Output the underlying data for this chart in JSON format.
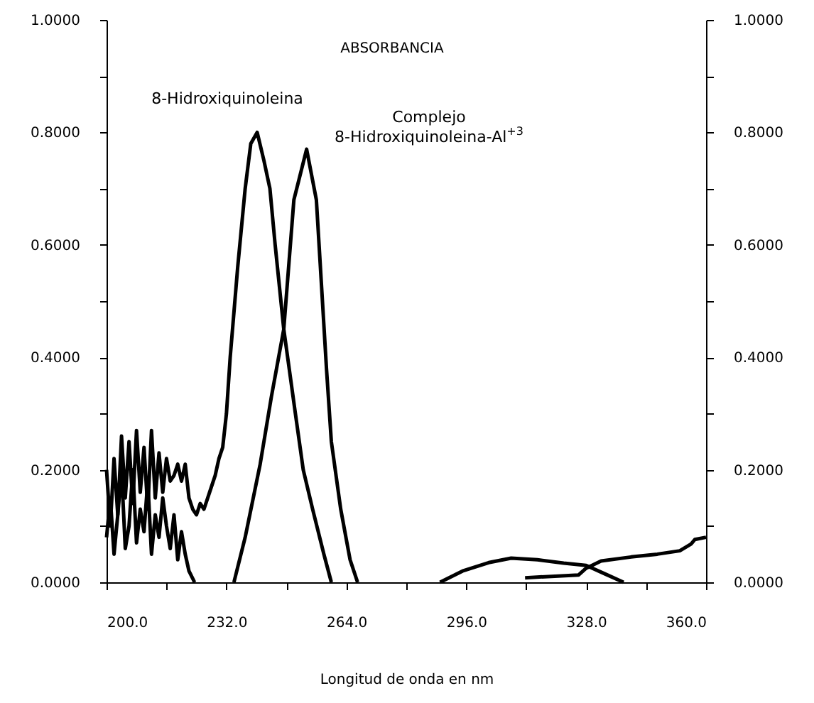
{
  "chart_data": {
    "type": "line",
    "title": "ABSORBANCIA",
    "xlabel": "Longitud de onda en  nm",
    "xlim": [
      200,
      360
    ],
    "xticks": [
      {
        "value": 200,
        "label": "200.0"
      },
      {
        "value": 216,
        "label": null
      },
      {
        "value": 232,
        "label": "232.0"
      },
      {
        "value": 248,
        "label": null
      },
      {
        "value": 264,
        "label": "264.0"
      },
      {
        "value": 280,
        "label": null
      },
      {
        "value": 296,
        "label": "296.0"
      },
      {
        "value": 312,
        "label": null
      },
      {
        "value": 328,
        "label": "328.0"
      },
      {
        "value": 344,
        "label": null
      },
      {
        "value": 360,
        "label": "360.0"
      }
    ],
    "ylim": [
      0,
      1
    ],
    "yticks": [
      {
        "value": 0,
        "label": "0.0000"
      },
      {
        "value": 0.1,
        "label": null
      },
      {
        "value": 0.2,
        "label": "0.2000"
      },
      {
        "value": 0.3,
        "label": null
      },
      {
        "value": 0.4,
        "label": "0.4000"
      },
      {
        "value": 0.5,
        "label": null
      },
      {
        "value": 0.6,
        "label": "0.6000"
      },
      {
        "value": 0.7,
        "label": null
      },
      {
        "value": 0.8,
        "label": "0.8000"
      },
      {
        "value": 0.9,
        "label": null
      },
      {
        "value": 1,
        "label": "1.0000"
      }
    ],
    "y2lim": [
      0,
      1
    ],
    "y2ticks": [
      {
        "value": 0,
        "label": "0.0000"
      },
      {
        "value": 0.1,
        "label": null
      },
      {
        "value": 0.2,
        "label": "0.2000"
      },
      {
        "value": 0.3,
        "label": null
      },
      {
        "value": 0.4,
        "label": "0.4000"
      },
      {
        "value": 0.5,
        "label": null
      },
      {
        "value": 0.6,
        "label": "0.6000"
      },
      {
        "value": 0.7,
        "label": null
      },
      {
        "value": 0.8,
        "label": "0.8000"
      },
      {
        "value": 0.9,
        "label": null
      },
      {
        "value": 1,
        "label": "1.0000"
      }
    ],
    "grid": false,
    "line_style": "solid",
    "series": [
      {
        "name": "8-Hidroxiquinoleina",
        "color": "#000000",
        "x": [
          200,
          201,
          202,
          203,
          204,
          205,
          206,
          207,
          208,
          209,
          210,
          211,
          212,
          213,
          214,
          215,
          216,
          217,
          218,
          219,
          220,
          221,
          222,
          223,
          224,
          225,
          226,
          227,
          228,
          229,
          230,
          231,
          232,
          233,
          235,
          237,
          238.5,
          240.2,
          242,
          243.6,
          245,
          247.3,
          250.4,
          252.5,
          255,
          258,
          260,
          261,
          289,
          295,
          302,
          308,
          315,
          322,
          328,
          333,
          338
        ],
        "values": [
          0.2,
          0.1,
          0.22,
          0.12,
          0.26,
          0.15,
          0.25,
          0.14,
          0.27,
          0.16,
          0.24,
          0.13,
          0.27,
          0.15,
          0.23,
          0.16,
          0.22,
          0.18,
          0.19,
          0.21,
          0.18,
          0.21,
          0.15,
          0.13,
          0.12,
          0.14,
          0.13,
          0.15,
          0.17,
          0.19,
          0.22,
          0.24,
          0.3,
          0.4,
          0.56,
          0.7,
          0.78,
          0.8,
          0.75,
          0.7,
          0.6,
          0.45,
          0.3,
          0.2,
          0.13,
          0.05,
          0,
          null,
          0,
          0.02,
          0.035,
          0.043,
          0.04,
          0.034,
          0.03,
          0.015,
          0
        ]
      },
      {
        "name": "Complejo 8-Hidroxiquinoleina-Al$^{+3}$",
        "color": "#000000",
        "x": [
          200,
          201,
          202,
          203,
          204,
          205,
          206,
          207,
          208,
          209,
          210,
          211,
          212,
          213,
          214,
          215,
          216,
          217,
          218,
          219,
          220,
          221,
          222,
          223.5,
          228,
          234,
          237,
          241,
          244,
          247.3,
          250,
          253.4,
          256,
          258.7,
          260,
          262.5,
          265,
          267,
          290,
          311.7,
          326,
          328,
          332,
          340,
          347,
          353,
          356,
          357,
          360
        ],
        "values": [
          0.08,
          0.15,
          0.05,
          0.12,
          0.2,
          0.06,
          0.1,
          0.2,
          0.07,
          0.13,
          0.09,
          0.18,
          0.05,
          0.12,
          0.08,
          0.15,
          0.1,
          0.06,
          0.12,
          0.04,
          0.09,
          0.05,
          0.02,
          0,
          null,
          0,
          0.08,
          0.21,
          0.33,
          0.45,
          0.68,
          0.77,
          0.68,
          0.38,
          0.25,
          0.13,
          0.04,
          0,
          null,
          0.008,
          0.013,
          0.025,
          0.038,
          0.045,
          0.05,
          0.056,
          0.068,
          0.076,
          0.08
        ]
      }
    ]
  }
}
